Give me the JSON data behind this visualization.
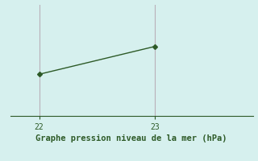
{
  "x": [
    22,
    23
  ],
  "y": [
    1015.5,
    1020.5
  ],
  "line_color": "#2d5a27",
  "marker": "D",
  "marker_size": 3,
  "bg_color": "#d6f0ee",
  "xlabel": "Graphe pression niveau de la mer (hPa)",
  "xlabel_color": "#2d5a27",
  "xlabel_fontsize": 7.5,
  "tick_label_color": "#2d5a27",
  "axis_line_color": "#2d5a27",
  "vline_color": "#b8b0b8",
  "xlim": [
    21.75,
    23.85
  ],
  "ylim": [
    1008.0,
    1028.0
  ],
  "xticks": [
    22,
    23
  ],
  "figsize": [
    3.2,
    2.0
  ],
  "dpi": 100
}
